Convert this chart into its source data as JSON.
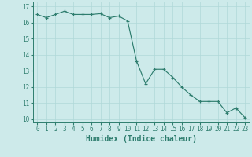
{
  "x": [
    0,
    1,
    2,
    3,
    4,
    5,
    6,
    7,
    8,
    9,
    10,
    11,
    12,
    13,
    14,
    15,
    16,
    17,
    18,
    19,
    20,
    21,
    22,
    23
  ],
  "y": [
    16.5,
    16.3,
    16.5,
    16.7,
    16.5,
    16.5,
    16.5,
    16.55,
    16.3,
    16.4,
    16.1,
    13.6,
    12.2,
    13.1,
    13.1,
    12.6,
    12.0,
    11.5,
    11.1,
    11.1,
    11.1,
    10.4,
    10.7,
    10.1
  ],
  "line_color": "#2e7d6e",
  "marker": "+",
  "bg_color": "#cdeaea",
  "grid_color": "#b0d8d8",
  "xlabel": "Humidex (Indice chaleur)",
  "xlim": [
    -0.5,
    23.5
  ],
  "ylim": [
    9.8,
    17.3
  ],
  "yticks": [
    10,
    11,
    12,
    13,
    14,
    15,
    16,
    17
  ],
  "xticks": [
    0,
    1,
    2,
    3,
    4,
    5,
    6,
    7,
    8,
    9,
    10,
    11,
    12,
    13,
    14,
    15,
    16,
    17,
    18,
    19,
    20,
    21,
    22,
    23
  ],
  "tick_fontsize": 5.5,
  "label_fontsize": 7.0
}
